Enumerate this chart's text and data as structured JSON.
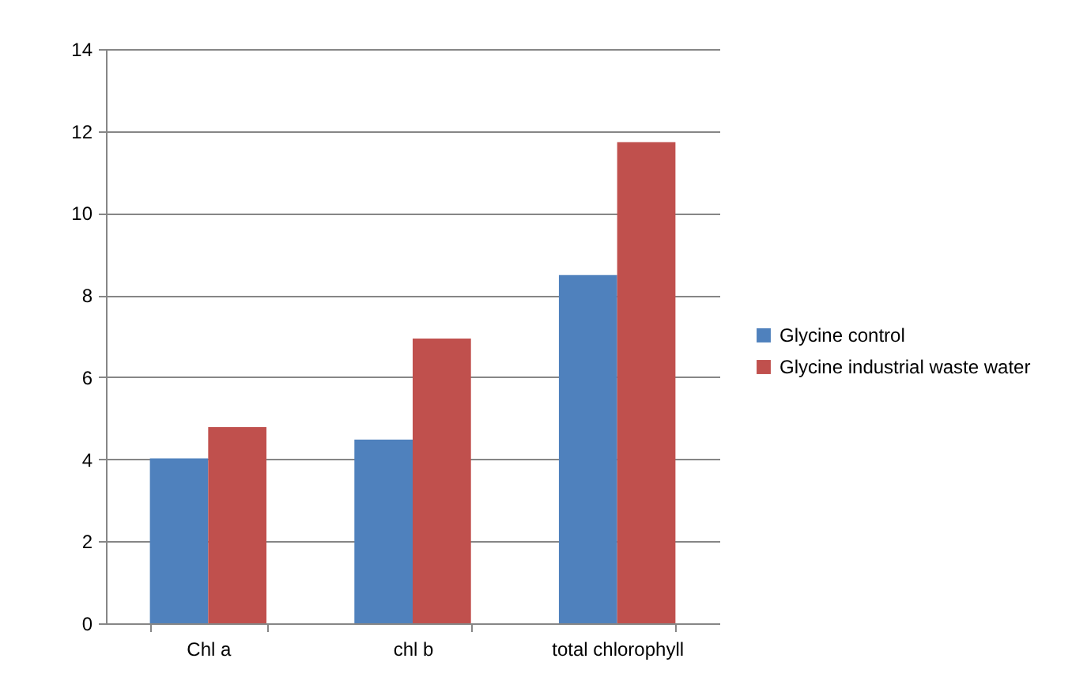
{
  "chart_data": {
    "type": "bar",
    "categories": [
      "Chl a",
      "chl b",
      "total chlorophyll"
    ],
    "series": [
      {
        "name": "Glycine control",
        "color": "#4f81bd",
        "values": [
          4.02,
          4.48,
          8.49
        ]
      },
      {
        "name": "Glycine industrial waste water",
        "color": "#c0504d",
        "values": [
          4.78,
          6.94,
          11.73
        ]
      }
    ],
    "ylim": [
      0,
      14
    ],
    "yticks": [
      0,
      2,
      4,
      6,
      8,
      10,
      12,
      14
    ],
    "grid": "y",
    "legend": "right"
  }
}
